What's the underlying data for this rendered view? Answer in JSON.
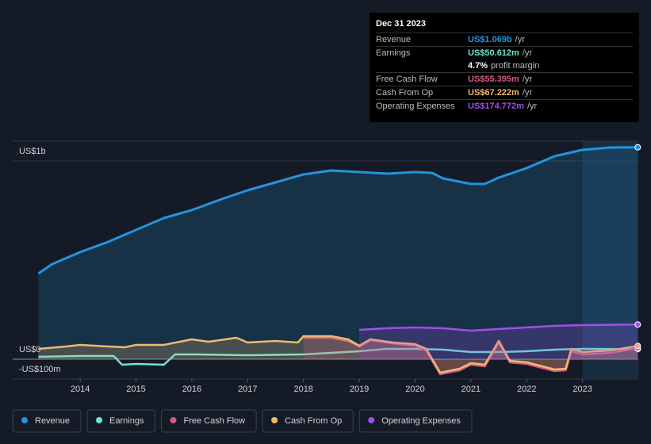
{
  "chart_data": {
    "type": "line",
    "xlim": [
      2012.79,
      2024.0
    ],
    "ylim": [
      -100,
      1100
    ],
    "xticks": [
      2014,
      2015,
      2016,
      2017,
      2018,
      2019,
      2020,
      2021,
      2022,
      2023
    ],
    "yticks": [
      {
        "value": 1000,
        "label": "US$1b"
      },
      {
        "value": 0,
        "label": "US$0"
      },
      {
        "value": -100,
        "label": "-US$100m"
      }
    ],
    "grid": true,
    "legend": "bottom",
    "series": [
      {
        "name": "Revenue",
        "color": "#2394df",
        "area": true,
        "x": [
          2013.25,
          2013.5,
          2014.0,
          2014.5,
          2015.0,
          2015.5,
          2016.0,
          2016.5,
          2017.0,
          2017.5,
          2018.0,
          2018.5,
          2019.0,
          2019.5,
          2020.0,
          2020.3,
          2020.5,
          2021.0,
          2021.25,
          2021.5,
          2022.0,
          2022.5,
          2023.0,
          2023.5,
          2023.99
        ],
        "values": [
          432,
          480,
          540,
          592,
          652,
          712,
          752,
          804,
          852,
          892,
          932,
          952,
          944,
          936,
          944,
          940,
          912,
          884,
          884,
          916,
          964,
          1024,
          1056,
          1068,
          1069
        ]
      },
      {
        "name": "Earnings",
        "color": "#6ee7d0",
        "x": [
          2013.25,
          2014.0,
          2014.6,
          2014.75,
          2015.0,
          2015.5,
          2015.7,
          2016.0,
          2017.0,
          2018.0,
          2019.0,
          2019.5,
          2020.0,
          2020.5,
          2021.0,
          2021.5,
          2022.0,
          2022.5,
          2023.0,
          2023.99
        ],
        "values": [
          12,
          16,
          16,
          -28,
          -24,
          -28,
          24,
          24,
          20,
          24,
          40,
          52,
          52,
          48,
          36,
          36,
          40,
          48,
          52,
          50.6
        ]
      },
      {
        "name": "Free Cash Flow",
        "color": "#d6588a",
        "area": true,
        "x": [
          2018.0,
          2018.5,
          2018.8,
          2019.0,
          2019.2,
          2019.6,
          2020.0,
          2020.2,
          2020.45,
          2020.8,
          2021.0,
          2021.25,
          2021.5,
          2021.7,
          2022.0,
          2022.5,
          2022.7,
          2022.8,
          2023.0,
          2023.5,
          2023.99
        ],
        "values": [
          108,
          108,
          92,
          64,
          96,
          80,
          68,
          44,
          -76,
          -56,
          -28,
          -36,
          84,
          -16,
          -24,
          -60,
          -56,
          40,
          24,
          32,
          55.4
        ]
      },
      {
        "name": "Cash From Op",
        "color": "#f0b86e",
        "area": true,
        "x": [
          2013.25,
          2013.75,
          2014.0,
          2014.5,
          2014.8,
          2015.0,
          2015.5,
          2016.0,
          2016.3,
          2016.8,
          2017.0,
          2017.5,
          2017.9,
          2018.0,
          2018.5,
          2018.8,
          2019.0,
          2019.2,
          2019.6,
          2020.0,
          2020.2,
          2020.45,
          2020.8,
          2021.0,
          2021.25,
          2021.5,
          2021.7,
          2022.0,
          2022.5,
          2022.7,
          2022.8,
          2023.0,
          2023.5,
          2023.99
        ],
        "values": [
          52,
          64,
          72,
          64,
          60,
          72,
          72,
          100,
          88,
          108,
          84,
          92,
          84,
          116,
          116,
          100,
          68,
          100,
          84,
          76,
          52,
          -68,
          -48,
          -20,
          -28,
          92,
          -8,
          -16,
          -52,
          -48,
          52,
          36,
          44,
          67.2
        ]
      },
      {
        "name": "Operating Expenses",
        "color": "#a24de8",
        "area": true,
        "x": [
          2019.0,
          2019.5,
          2020.0,
          2020.5,
          2021.0,
          2021.5,
          2022.0,
          2022.5,
          2023.0,
          2023.99
        ],
        "values": [
          148,
          156,
          160,
          156,
          144,
          152,
          160,
          168,
          172,
          174.8
        ]
      }
    ]
  },
  "tooltip": {
    "date": "Dec 31 2023",
    "rows": [
      {
        "label": "Revenue",
        "value": "US$1.069b",
        "unit": "/yr",
        "color": "#2394df"
      },
      {
        "label": "Earnings",
        "value": "US$50.612m",
        "unit": "/yr",
        "color": "#6ee7d0"
      },
      {
        "value": "4.7%",
        "unit": "profit margin",
        "color": "#ffffff"
      },
      {
        "label": "Free Cash Flow",
        "value": "US$55.395m",
        "unit": "/yr",
        "color": "#d6588a"
      },
      {
        "label": "Cash From Op",
        "value": "US$67.222m",
        "unit": "/yr",
        "color": "#f0b86e"
      },
      {
        "label": "Operating Expenses",
        "value": "US$174.772m",
        "unit": "/yr",
        "color": "#a24de8"
      }
    ]
  }
}
